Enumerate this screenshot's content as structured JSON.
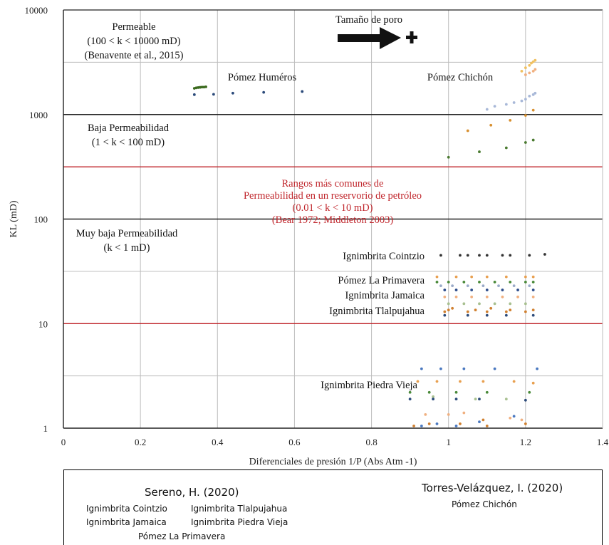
{
  "chart_data": {
    "type": "scatter",
    "xlabel": "Diferenciales de presión 1/P (Abs Atm -1)",
    "ylabel": "KL (mD)",
    "xlim": [
      0,
      1.4
    ],
    "ylim": [
      1,
      10000
    ],
    "y_scale": "log",
    "grid": true,
    "x_ticks": [
      "0",
      "0.2",
      "0.4",
      "0.6",
      "0.8",
      "1",
      "1.2",
      "1.4"
    ],
    "y_ticks": [
      "1",
      "10",
      "100",
      "1000",
      "10000"
    ],
    "boundary_lines": [
      {
        "y": 1000,
        "color": "#222222"
      },
      {
        "y": 316,
        "color": "#c0272d"
      },
      {
        "y": 100,
        "color": "#222222"
      },
      {
        "y": 10,
        "color": "#c0272d"
      }
    ],
    "zone_labels": [
      {
        "lines": [
          "Permeable",
          "(100 < k < 10000 mD)",
          "(Benavente et al., 2015)"
        ],
        "color": "#111111"
      },
      {
        "lines": [
          "Baja Permeabilidad",
          "(1 < k < 100 mD)"
        ],
        "color": "#111111"
      },
      {
        "lines": [
          "Rangos más comunes de",
          "Permeabilidad en un reservorio de petróleo",
          "(0.01 < k < 10 mD)",
          "(Bear 1972; Middleton 2003)"
        ],
        "color": "#c0272d"
      },
      {
        "lines": [
          "Muy baja Permeabilidad",
          "(k < 1 mD)"
        ],
        "color": "#111111"
      }
    ],
    "arrow_label": "Tamaño de poro",
    "series_labels": [
      "Pómez Huméros",
      "Pómez Chichón",
      "Ignimbrita Cointzio",
      "Pómez La Primavera",
      "Ignimbrita Jamaica",
      "Ignimbrita Tlalpujahua",
      "Ignimbrita Piedra Vieja"
    ],
    "series": [
      {
        "color": "#3b6a1e",
        "points": [
          [
            0.34,
            1780
          ],
          [
            0.345,
            1800
          ],
          [
            0.35,
            1810
          ],
          [
            0.355,
            1820
          ],
          [
            0.36,
            1830
          ],
          [
            0.365,
            1830
          ],
          [
            0.37,
            1840
          ]
        ]
      },
      {
        "color": "#2b4a7a",
        "points": [
          [
            0.34,
            1550
          ],
          [
            0.39,
            1560
          ],
          [
            0.44,
            1600
          ],
          [
            0.52,
            1630
          ],
          [
            0.62,
            1660
          ]
        ]
      },
      {
        "color": "#f0c060",
        "points": [
          [
            1.19,
            2600
          ],
          [
            1.2,
            2800
          ],
          [
            1.21,
            2950
          ],
          [
            1.215,
            3100
          ],
          [
            1.22,
            3200
          ],
          [
            1.225,
            3300
          ]
        ]
      },
      {
        "color": "#f0b080",
        "points": [
          [
            1.2,
            2400
          ],
          [
            1.21,
            2500
          ],
          [
            1.22,
            2600
          ],
          [
            1.225,
            2700
          ]
        ]
      },
      {
        "color": "#a8b8d8",
        "points": [
          [
            1.1,
            1120
          ],
          [
            1.12,
            1200
          ],
          [
            1.15,
            1250
          ],
          [
            1.17,
            1300
          ],
          [
            1.19,
            1350
          ],
          [
            1.2,
            1400
          ],
          [
            1.21,
            1500
          ],
          [
            1.22,
            1550
          ],
          [
            1.225,
            1600
          ]
        ]
      },
      {
        "color": "#d89030",
        "points": [
          [
            1.05,
            700
          ],
          [
            1.11,
            790
          ],
          [
            1.16,
            880
          ],
          [
            1.2,
            980
          ],
          [
            1.22,
            1100
          ]
        ]
      },
      {
        "color": "#4a7a30",
        "points": [
          [
            1.0,
            390
          ],
          [
            1.08,
            440
          ],
          [
            1.15,
            480
          ],
          [
            1.2,
            540
          ],
          [
            1.22,
            570
          ]
        ]
      },
      {
        "color": "#333333",
        "points": [
          [
            0.98,
            45
          ],
          [
            1.03,
            45
          ],
          [
            1.05,
            45
          ],
          [
            1.08,
            45
          ],
          [
            1.1,
            45
          ],
          [
            1.14,
            45
          ],
          [
            1.16,
            45
          ],
          [
            1.21,
            45
          ],
          [
            1.25,
            46
          ]
        ]
      },
      {
        "color": "#e8a050",
        "points": [
          [
            0.97,
            28
          ],
          [
            1.02,
            28
          ],
          [
            1.06,
            28
          ],
          [
            1.1,
            28
          ],
          [
            1.15,
            28
          ],
          [
            1.2,
            28
          ],
          [
            1.22,
            28
          ]
        ]
      },
      {
        "color": "#4a8a3a",
        "points": [
          [
            0.97,
            25
          ],
          [
            1.0,
            25
          ],
          [
            1.04,
            25
          ],
          [
            1.08,
            25
          ],
          [
            1.12,
            25
          ],
          [
            1.16,
            25
          ],
          [
            1.2,
            25
          ],
          [
            1.22,
            25
          ]
        ]
      },
      {
        "color": "#9aaac8",
        "points": [
          [
            0.98,
            23
          ],
          [
            1.01,
            23
          ],
          [
            1.05,
            23
          ],
          [
            1.09,
            23
          ],
          [
            1.13,
            23
          ],
          [
            1.17,
            23
          ],
          [
            1.21,
            23
          ]
        ]
      },
      {
        "color": "#2a4a8a",
        "points": [
          [
            0.99,
            21
          ],
          [
            1.02,
            21
          ],
          [
            1.06,
            21
          ],
          [
            1.1,
            21
          ],
          [
            1.14,
            21
          ],
          [
            1.18,
            21
          ],
          [
            1.22,
            21
          ]
        ]
      },
      {
        "color": "#f0b080",
        "points": [
          [
            0.99,
            18
          ],
          [
            1.02,
            18
          ],
          [
            1.06,
            18
          ],
          [
            1.1,
            18
          ],
          [
            1.14,
            18
          ],
          [
            1.18,
            18
          ],
          [
            1.22,
            18
          ]
        ]
      },
      {
        "color": "#a8c090",
        "points": [
          [
            1.0,
            15.5
          ],
          [
            1.04,
            15.5
          ],
          [
            1.08,
            15.5
          ],
          [
            1.12,
            15.5
          ],
          [
            1.16,
            15.5
          ],
          [
            1.2,
            15.5
          ]
        ]
      },
      {
        "color": "#d08030",
        "points": [
          [
            0.99,
            13
          ],
          [
            1.0,
            13.5
          ],
          [
            1.01,
            14
          ],
          [
            1.05,
            13
          ],
          [
            1.07,
            13.5
          ],
          [
            1.1,
            13
          ],
          [
            1.11,
            14
          ],
          [
            1.15,
            13
          ],
          [
            1.16,
            13.5
          ],
          [
            1.2,
            13
          ],
          [
            1.22,
            13.5
          ]
        ]
      },
      {
        "color": "#2b4a7a",
        "points": [
          [
            0.99,
            12
          ],
          [
            1.05,
            12
          ],
          [
            1.1,
            12
          ],
          [
            1.15,
            12
          ],
          [
            1.22,
            12
          ]
        ]
      },
      {
        "color": "#4a78c0",
        "points": [
          [
            0.93,
            3.7
          ],
          [
            0.98,
            3.7
          ],
          [
            1.04,
            3.7
          ],
          [
            1.12,
            3.7
          ],
          [
            1.23,
            3.7
          ]
        ]
      },
      {
        "color": "#e8a050",
        "points": [
          [
            0.92,
            2.8
          ],
          [
            0.97,
            2.8
          ],
          [
            1.03,
            2.8
          ],
          [
            1.09,
            2.8
          ],
          [
            1.17,
            2.8
          ],
          [
            1.22,
            2.7
          ]
        ]
      },
      {
        "color": "#4a8a3a",
        "points": [
          [
            0.9,
            2.2
          ],
          [
            0.95,
            2.2
          ],
          [
            1.02,
            2.2
          ],
          [
            1.1,
            2.2
          ],
          [
            1.21,
            2.2
          ]
        ]
      },
      {
        "color": "#a8c090",
        "points": [
          [
            0.96,
            2.0
          ],
          [
            1.07,
            1.9
          ],
          [
            1.15,
            1.9
          ]
        ]
      },
      {
        "color": "#2b4a7a",
        "points": [
          [
            0.9,
            1.9
          ],
          [
            0.96,
            1.9
          ],
          [
            1.02,
            1.9
          ],
          [
            1.08,
            1.9
          ],
          [
            1.2,
            1.85
          ]
        ]
      },
      {
        "color": "#f0b080",
        "points": [
          [
            0.94,
            1.35
          ],
          [
            1.0,
            1.35
          ],
          [
            1.04,
            1.4
          ],
          [
            1.16,
            1.25
          ],
          [
            1.19,
            1.2
          ]
        ]
      },
      {
        "color": "#d08030",
        "points": [
          [
            0.91,
            1.05
          ],
          [
            0.95,
            1.1
          ],
          [
            1.03,
            1.1
          ],
          [
            1.09,
            1.2
          ],
          [
            1.1,
            1.05
          ],
          [
            1.2,
            1.1
          ]
        ]
      },
      {
        "color": "#4a78c0",
        "points": [
          [
            0.93,
            1.05
          ],
          [
            0.97,
            1.1
          ],
          [
            1.02,
            1.05
          ],
          [
            1.08,
            1.15
          ],
          [
            1.17,
            1.3
          ]
        ]
      }
    ]
  },
  "legend": {
    "left_title": "Sereno, H. (2020)",
    "left_items": [
      "Ignimbrita Cointzio",
      "Ignimbrita Tlalpujahua",
      "Ignimbrita Jamaica",
      "Ignimbrita Piedra Vieja",
      "Pómez La Primavera"
    ],
    "right_title": "Torres-Velázquez, I. (2020)",
    "right_items": [
      "Pómez Chichón"
    ]
  }
}
